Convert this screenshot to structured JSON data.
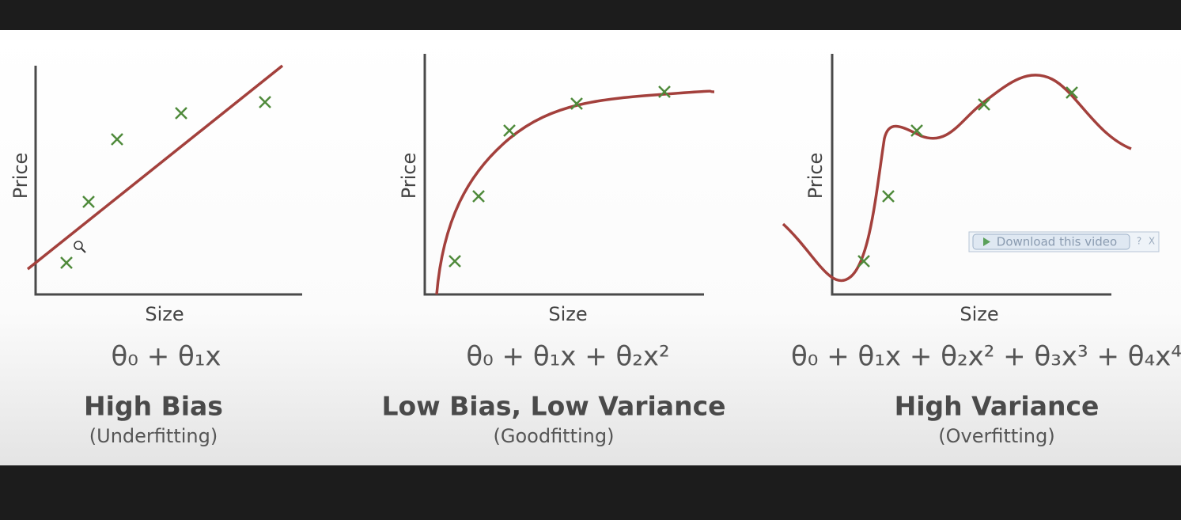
{
  "panels": [
    {
      "y_label": "Price",
      "x_label": "Size",
      "formula": "θ₀ + θ₁x",
      "title": "High Bias",
      "subtitle": "(Underfitting)"
    },
    {
      "y_label": "Price",
      "x_label": "Size",
      "formula": "θ₀ + θ₁x + θ₂x²",
      "title": "Low Bias, Low Variance",
      "subtitle": "(Goodfitting)"
    },
    {
      "y_label": "Price",
      "x_label": "Size",
      "formula": "θ₀ + θ₁x + θ₂x² + θ₃x³ + θ₄x⁴",
      "title": "High Variance",
      "subtitle": "(Overfitting)"
    }
  ],
  "download_button": {
    "label": "Download this video",
    "help": "?",
    "close": "X"
  }
}
